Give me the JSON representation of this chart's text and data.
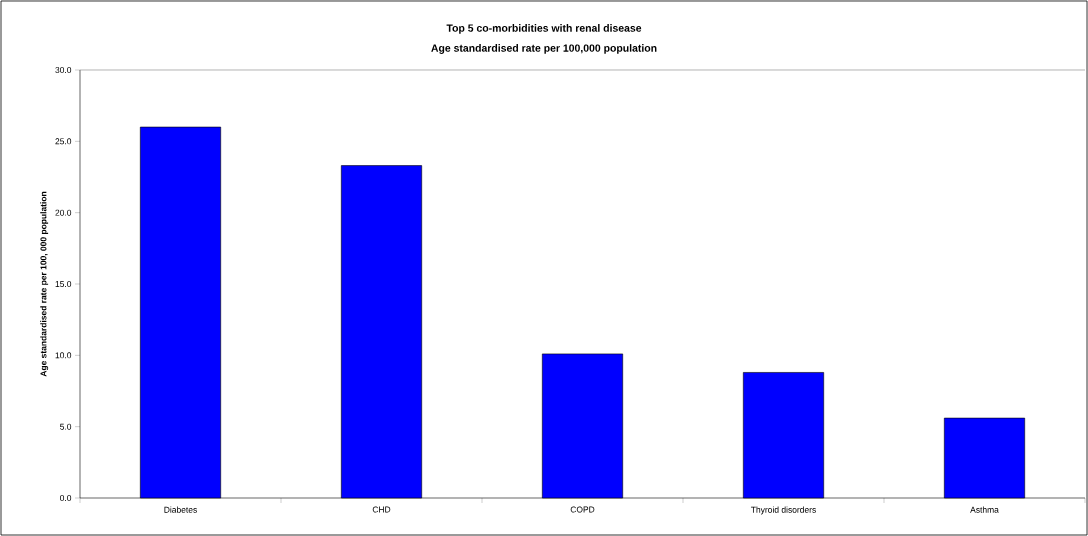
{
  "chart_data": {
    "type": "bar",
    "title": "Top 5 co-morbidities with renal disease",
    "subtitle": "Age standardised rate per 100,000 population",
    "ylabel": "Age standardised rate per 100, 000 population",
    "categories": [
      "Diabetes",
      "CHD",
      "COPD",
      "Thyroid disorders",
      "Asthma"
    ],
    "values": [
      26.0,
      23.3,
      10.1,
      8.8,
      5.6
    ],
    "color": "#0000ff",
    "ylim": [
      0,
      30
    ],
    "yticks": [
      {
        "value": 0,
        "label": "0.0"
      },
      {
        "value": 5,
        "label": "5.0"
      },
      {
        "value": 10,
        "label": "10.0"
      },
      {
        "value": 15,
        "label": "15.0"
      },
      {
        "value": 20,
        "label": "20.0"
      },
      {
        "value": 25,
        "label": "25.0"
      },
      {
        "value": 30,
        "label": "30.0"
      }
    ],
    "grid": false
  }
}
